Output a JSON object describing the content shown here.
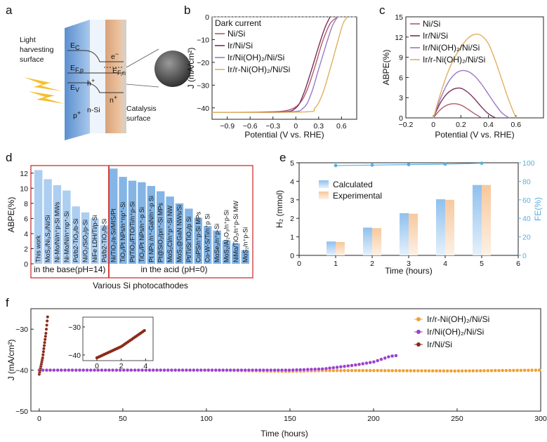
{
  "panels": {
    "a": {
      "label": "a",
      "texts": {
        "light": [
          "Light",
          "harvesting",
          "surface"
        ],
        "catalysis": [
          "Catalysis",
          "surface"
        ],
        "ec": "E",
        "ec_sub": "C",
        "efp": "E",
        "efp_sub": "F,p",
        "ev": "E",
        "ev_sub": "V",
        "efn": "E",
        "efn_sub": "F,n",
        "h": "h",
        "h_sup": "+",
        "e": "e",
        "e_sup": "−",
        "pplus": "p",
        "pplus_sup": "+",
        "nsi": "n-Si",
        "nplus": "n",
        "nplus_sup": "+"
      }
    },
    "b": {
      "label": "b",
      "ylabel": "J (mA/cm²)",
      "xlabel": "Potential (V vs. RHE)",
      "dark_current": "Dark current",
      "legend": [
        "Ni/Si",
        "Ir/Ni/Si",
        "Ir/Ni(OH)₂/Ni/Si",
        "Ir/r-Ni(OH)₂/Ni/Si"
      ]
    },
    "c": {
      "label": "c",
      "ylabel": "ABPE(%)",
      "xlabel": "Potential (V vs. RHE)",
      "legend": [
        "Ni/Si",
        "Ir/Ni/Si",
        "Ir/Ni(OH)₂/Ni/Si",
        "Ir/r-Ni(OH)₂/Ni/Si"
      ]
    },
    "d": {
      "label": "d",
      "ylabel": "ABPE(%)",
      "xlabel": "Various Si photocathodes",
      "base_label": "in the base(pH=14)",
      "acid_label": "in the acid (pH=0)"
    },
    "e": {
      "label": "e",
      "ylabel_left": "H₂ (mmol)",
      "ylabel_right": "FE(%)",
      "xlabel": "Time (hours)",
      "legend": [
        "Calculated",
        "Experimental"
      ]
    },
    "f": {
      "label": "f",
      "ylabel": "J (mA/cm²)",
      "xlabel": "Time (hours)",
      "legend": [
        "Ir/r-Ni(OH)₂/Ni/Si",
        "Ir/Ni(OH)₂/Ni/Si",
        "Ir/Ni/Si"
      ]
    }
  },
  "colors": {
    "nisi": "#b05a6a",
    "irnisi": "#7a2e5a",
    "irnioh": "#9a78c8",
    "irrnioh": "#e0b060",
    "bar_base": "#9ec6ee",
    "bar_acid": "#6fa8e0",
    "calc": "#8fc0ee",
    "exp": "#f7c89c",
    "fe": "#5aaee0",
    "f_orange": "#f0a030",
    "f_purple": "#9a40d0",
    "f_brown": "#8b2a1a",
    "frame_red": "#d04040"
  },
  "chart_data": [
    {
      "panel": "b",
      "type": "line",
      "xlabel": "Potential (V vs. RHE)",
      "ylabel": "J (mA/cm²)",
      "xlim": [
        -1.1,
        0.8
      ],
      "ylim": [
        -45,
        0
      ],
      "xticks": [
        -0.9,
        -0.6,
        -0.3,
        0.0,
        0.3,
        0.6
      ],
      "yticks": [
        -40,
        -30,
        -20,
        -10,
        0
      ],
      "series": [
        {
          "name": "Dark current",
          "x": [
            -1.1,
            0.8
          ],
          "y": [
            0,
            0
          ]
        },
        {
          "name": "Ni/Si",
          "x": [
            -1.1,
            -0.4,
            -0.1,
            0.05,
            0.15,
            0.25,
            0.35,
            0.45,
            0.55
          ],
          "y": [
            -42,
            -41.8,
            -41,
            -38,
            -32,
            -22,
            -11,
            -3,
            0
          ]
        },
        {
          "name": "Ir/Ni/Si",
          "x": [
            -1.1,
            -0.2,
            0.0,
            0.1,
            0.2,
            0.3,
            0.38,
            0.45
          ],
          "y": [
            -42,
            -41.8,
            -40,
            -34,
            -24,
            -13,
            -5,
            0
          ]
        },
        {
          "name": "Ir/Ni(OH)₂/Ni/Si",
          "x": [
            -1.1,
            -0.1,
            0.1,
            0.2,
            0.3,
            0.4,
            0.48,
            0.55
          ],
          "y": [
            -42,
            -41.8,
            -40,
            -34,
            -23,
            -12,
            -4,
            0
          ]
        },
        {
          "name": "Ir/r-Ni(OH)₂/Ni/Si",
          "x": [
            -1.1,
            0.1,
            0.25,
            0.35,
            0.45,
            0.55,
            0.62,
            0.68
          ],
          "y": [
            -42,
            -41.8,
            -40,
            -34,
            -23,
            -11,
            -3,
            0
          ]
        }
      ]
    },
    {
      "panel": "c",
      "type": "line",
      "xlabel": "Potential (V vs. RHE)",
      "ylabel": "ABPE(%)",
      "xlim": [
        -0.2,
        0.8
      ],
      "ylim": [
        0,
        15
      ],
      "xticks": [
        -0.2,
        0.0,
        0.2,
        0.4,
        0.6
      ],
      "yticks": [
        0,
        3,
        6,
        9,
        12,
        15
      ],
      "series": [
        {
          "name": "Ni/Si",
          "x": [
            0.0,
            0.05,
            0.1,
            0.15,
            0.2,
            0.25,
            0.3,
            0.35
          ],
          "y": [
            0,
            1.2,
            1.9,
            2.1,
            1.9,
            1.3,
            0.6,
            0
          ]
        },
        {
          "name": "Ir/Ni/Si",
          "x": [
            0.0,
            0.05,
            0.1,
            0.15,
            0.2,
            0.25,
            0.3,
            0.35,
            0.4,
            0.45
          ],
          "y": [
            0,
            2.2,
            3.6,
            4.3,
            4.4,
            3.8,
            2.8,
            1.6,
            0.6,
            0
          ]
        },
        {
          "name": "Ir/Ni(OH)₂/Ni/Si",
          "x": [
            0.0,
            0.05,
            0.1,
            0.15,
            0.2,
            0.25,
            0.3,
            0.35,
            0.4,
            0.45,
            0.5,
            0.55
          ],
          "y": [
            0,
            2.8,
            5.0,
            6.4,
            7.0,
            6.9,
            6.2,
            5.0,
            3.5,
            2.0,
            0.7,
            0
          ]
        },
        {
          "name": "Ir/r-Ni(OH)₂/Ni/Si",
          "x": [
            0.0,
            0.05,
            0.1,
            0.15,
            0.2,
            0.25,
            0.3,
            0.35,
            0.4,
            0.45,
            0.5,
            0.55,
            0.6
          ],
          "y": [
            0,
            3.5,
            6.5,
            8.8,
            10.5,
            11.8,
            12.4,
            12.2,
            11.0,
            8.5,
            5.5,
            2.5,
            0
          ]
        }
      ]
    },
    {
      "panel": "d",
      "type": "bar",
      "ylabel": "ABPE(%)",
      "xlabel": "Various Si photocathodes",
      "ylim": [
        0,
        13
      ],
      "yticks": [
        0,
        2,
        4,
        6,
        8,
        10,
        12
      ],
      "categories": [
        "This work",
        "MoS₂/Ni₃S₂/Ni/Si",
        "Ni-Mo/Ni/n⁺p-Si MWs",
        "Ni-Mo/Ni/n⁺np⁺-Si",
        "Pd/b2-TiO₂/b-Si",
        "Ni/O₂/SiO₂/p-Si",
        "NiFe LDH/Ti/p-Si",
        "Pd/b2-TiO₂/b-Si",
        "Ni/TiO₂/a-Si/MIS/Pt",
        "TiO₂/Pt NPs/n⁺np⁺-Si",
        "Pt/TiO₂/FTO/Ti/n⁺p-Si",
        "TiO₂/Pt NPs/n⁺-p Si",
        "Pt NPs /n⁺-GaN/n⁺-p Si",
        "Pt@SiO₂/pn⁺-Si MPs",
        "MoS₂Cl/n⁺p⁺-Si NW",
        "MoS₂@GaN NWs/Si",
        "Pt/Ti/SrTiO₃/p Si",
        "CoPS/n⁺p-Si MPs",
        "Co-W-S/Ti/n⁺p Si",
        "MoSe₂/n⁺p-Si",
        "MoS₂/Al₂O₃/n⁺p-Si",
        "NiMo/TiO₂/n⁺p-Si MW",
        "MoS₂/n⁺p-Si"
      ],
      "values": [
        12.4,
        11.2,
        10.4,
        9.7,
        7.6,
        6.8,
        6.0,
        5.1,
        12.6,
        11.5,
        11.0,
        10.8,
        10.3,
        9.6,
        8.9,
        8.0,
        7.3,
        6.1,
        5.0,
        4.4,
        3.1,
        2.7,
        1.8
      ],
      "groups": [
        "base",
        "base",
        "base",
        "base",
        "base",
        "base",
        "base",
        "base",
        "acid",
        "acid",
        "acid",
        "acid",
        "acid",
        "acid",
        "acid",
        "acid",
        "acid",
        "acid",
        "acid",
        "acid",
        "acid",
        "acid",
        "acid"
      ]
    },
    {
      "panel": "e",
      "type": "bar",
      "xlabel": "Time (hours)",
      "ylabel": "H₂ (mmol)",
      "ylabel_right": "FE(%)",
      "xlim": [
        0,
        6
      ],
      "ylim": [
        0,
        5
      ],
      "ylim_right": [
        0,
        100
      ],
      "xticks": [
        0,
        1,
        2,
        3,
        4,
        5,
        6
      ],
      "yticks": [
        0,
        1,
        2,
        3,
        4,
        5
      ],
      "yticks_right": [
        0,
        20,
        40,
        60,
        80,
        100
      ],
      "x": [
        1,
        2,
        3,
        4,
        5
      ],
      "series": [
        {
          "name": "Calculated",
          "values": [
            0.75,
            1.5,
            2.28,
            3.03,
            3.8
          ]
        },
        {
          "name": "Experimental",
          "values": [
            0.72,
            1.47,
            2.25,
            3.0,
            3.8
          ]
        },
        {
          "name": "FE",
          "values": [
            97,
            97.5,
            98,
            98.5,
            99.5
          ]
        }
      ]
    },
    {
      "panel": "f",
      "type": "scatter",
      "xlabel": "Time (hours)",
      "ylabel": "J (mA/cm²)",
      "xlim": [
        -5,
        300
      ],
      "ylim": [
        -50,
        -25
      ],
      "xticks": [
        0,
        50,
        100,
        150,
        200,
        250,
        300
      ],
      "yticks": [
        -50,
        -40,
        -30
      ],
      "series": [
        {
          "name": "Ir/r-Ni(OH)₂/Ni/Si",
          "x": [
            0,
            50,
            100,
            150,
            170,
            200,
            250,
            300
          ],
          "y": [
            -40,
            -40,
            -40,
            -40.3,
            -40.1,
            -40.1,
            -40.2,
            -40
          ]
        },
        {
          "name": "Ir/Ni(OH)₂/Ni/Si",
          "x": [
            0,
            50,
            100,
            150,
            170,
            180,
            190,
            200,
            210,
            215
          ],
          "y": [
            -40,
            -40,
            -40,
            -40,
            -39.7,
            -39.2,
            -38.7,
            -38,
            -36.6,
            -36.4
          ]
        },
        {
          "name": "Ir/Ni/Si",
          "x": [
            0,
            1,
            2,
            3,
            4,
            5
          ],
          "y": [
            -41,
            -39,
            -37,
            -34,
            -31,
            -27
          ]
        }
      ],
      "inset": {
        "xlim": [
          0,
          4.5
        ],
        "ylim": [
          -41,
          -27
        ],
        "xticks": [
          0,
          2,
          4
        ],
        "yticks": [
          -40,
          -30
        ]
      }
    }
  ]
}
